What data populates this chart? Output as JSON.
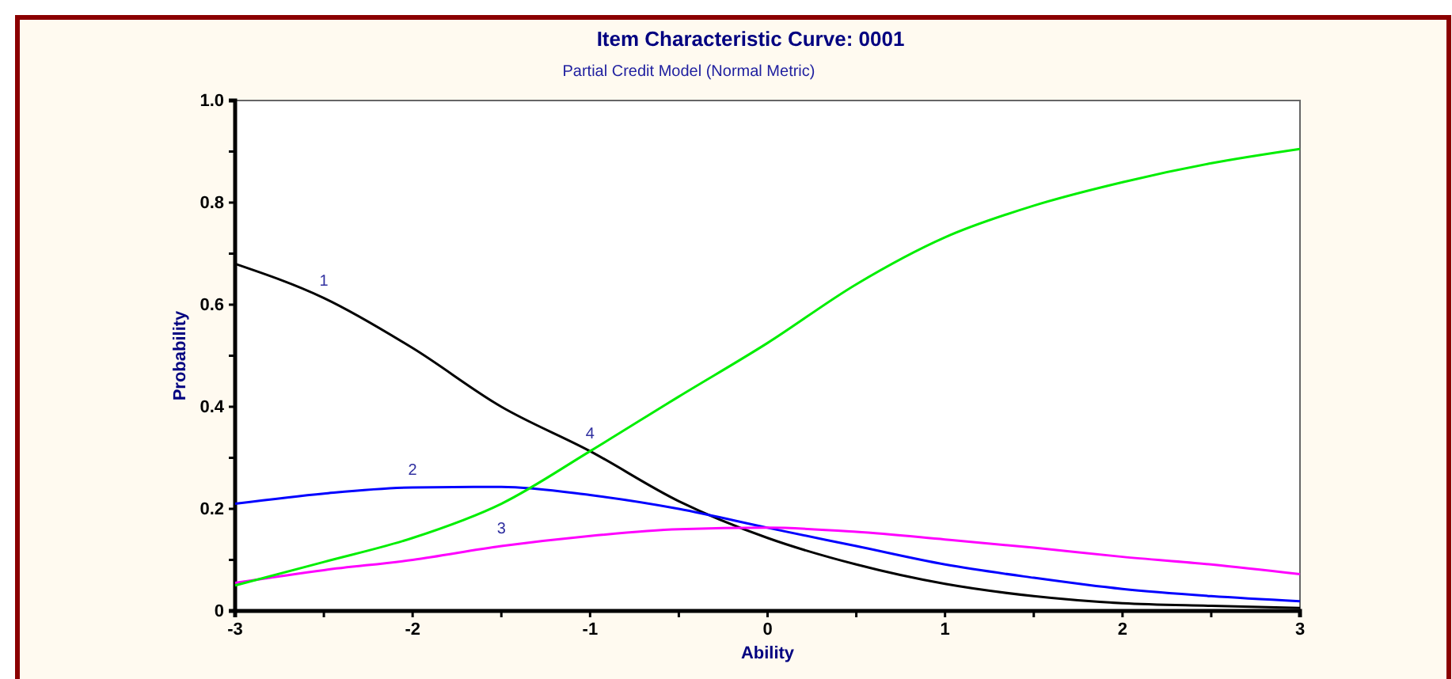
{
  "chart_data": {
    "type": "line",
    "title": "Item Characteristic Curve: 0001",
    "subtitle": "Partial Credit Model (Normal Metric)",
    "xlabel": "Ability",
    "ylabel": "Probability",
    "x": [
      -3,
      -2.5,
      -2,
      -1.5,
      -1,
      -0.5,
      0,
      0.5,
      1,
      1.5,
      2,
      2.5,
      3
    ],
    "series": [
      {
        "name": "1",
        "color": "#000000",
        "values": [
          0.68,
          0.613,
          0.515,
          0.4,
          0.313,
          0.215,
          0.143,
          0.091,
          0.053,
          0.029,
          0.015,
          0.01,
          0.006
        ]
      },
      {
        "name": "2",
        "color": "#0000ff",
        "values": [
          0.21,
          0.23,
          0.242,
          0.243,
          0.227,
          0.2,
          0.163,
          0.127,
          0.091,
          0.065,
          0.043,
          0.029,
          0.019
        ]
      },
      {
        "name": "3",
        "color": "#ff00ff",
        "values": [
          0.055,
          0.08,
          0.1,
          0.127,
          0.147,
          0.16,
          0.163,
          0.155,
          0.14,
          0.124,
          0.106,
          0.091,
          0.072
        ]
      },
      {
        "name": "4",
        "color": "#00ee00",
        "values": [
          0.05,
          0.096,
          0.143,
          0.21,
          0.313,
          0.42,
          0.525,
          0.64,
          0.732,
          0.794,
          0.84,
          0.877,
          0.905
        ]
      }
    ],
    "xlim": [
      -3,
      3
    ],
    "ylim": [
      0,
      1
    ],
    "xticks": [
      -3,
      {
        "value": -2.5,
        "label": null
      },
      -2,
      {
        "value": -1.5,
        "label": null
      },
      -1,
      {
        "value": -0.5,
        "label": null
      },
      0,
      {
        "value": 0.5,
        "label": null
      },
      1,
      {
        "value": 1.5,
        "label": null
      },
      2,
      {
        "value": 2.5,
        "label": null
      },
      3
    ],
    "yticks": [
      0,
      {
        "value": 0.1,
        "label": null
      },
      0.2,
      {
        "value": 0.3,
        "label": null
      },
      0.4,
      {
        "value": 0.5,
        "label": null
      },
      0.6,
      {
        "value": 0.7,
        "label": null
      },
      0.8,
      {
        "value": 0.9,
        "label": null
      },
      {
        "value": 1,
        "label": "1.0"
      }
    ],
    "grid": false,
    "marker": "none",
    "line_style": "solid"
  }
}
